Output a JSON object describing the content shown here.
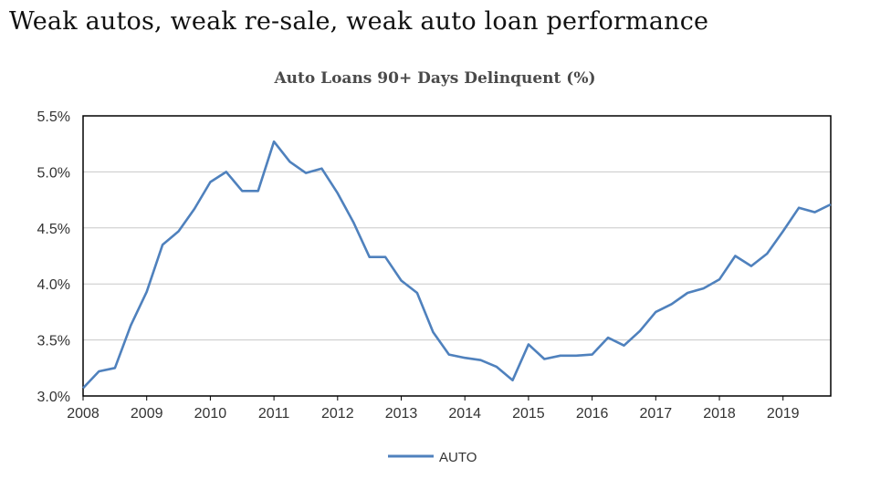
{
  "heading": "Weak autos, weak re-sale, weak auto loan performance",
  "chart_data": {
    "type": "line",
    "title": "Auto Loans 90+ Days Delinquent (%)",
    "xlabel": "",
    "ylabel": "",
    "xlim": [
      2008.0,
      2019.75
    ],
    "ylim": [
      3.0,
      5.5
    ],
    "yticks": [
      "3.0%",
      "3.5%",
      "4.0%",
      "4.5%",
      "5.0%",
      "5.5%"
    ],
    "xticks": [
      "2008",
      "2009",
      "2010",
      "2011",
      "2012",
      "2013",
      "2014",
      "2015",
      "2016",
      "2017",
      "2018",
      "2019"
    ],
    "grid": "horizontal",
    "legend": "bottom",
    "color": "#4f81bd",
    "series": [
      {
        "name": "AUTO",
        "x": [
          2008.0,
          2008.25,
          2008.5,
          2008.75,
          2009.0,
          2009.25,
          2009.5,
          2009.75,
          2010.0,
          2010.25,
          2010.5,
          2010.75,
          2011.0,
          2011.25,
          2011.5,
          2011.75,
          2012.0,
          2012.25,
          2012.5,
          2012.75,
          2013.0,
          2013.25,
          2013.5,
          2013.75,
          2014.0,
          2014.25,
          2014.5,
          2014.75,
          2015.0,
          2015.25,
          2015.5,
          2015.75,
          2016.0,
          2016.25,
          2016.5,
          2016.75,
          2017.0,
          2017.25,
          2017.5,
          2017.75,
          2018.0,
          2018.25,
          2018.5,
          2018.75,
          2019.0,
          2019.25,
          2019.5,
          2019.75
        ],
        "values": [
          3.07,
          3.22,
          3.25,
          3.63,
          3.93,
          4.35,
          4.47,
          4.67,
          4.91,
          5.0,
          4.83,
          4.83,
          5.27,
          5.09,
          4.99,
          5.03,
          4.81,
          4.55,
          4.24,
          4.24,
          4.03,
          3.92,
          3.57,
          3.37,
          3.34,
          3.32,
          3.26,
          3.14,
          3.46,
          3.33,
          3.36,
          3.36,
          3.37,
          3.52,
          3.45,
          3.58,
          3.75,
          3.82,
          3.92,
          3.96,
          4.04,
          4.25,
          4.16,
          4.27,
          4.47,
          4.68,
          4.64,
          4.71
        ]
      }
    ]
  }
}
